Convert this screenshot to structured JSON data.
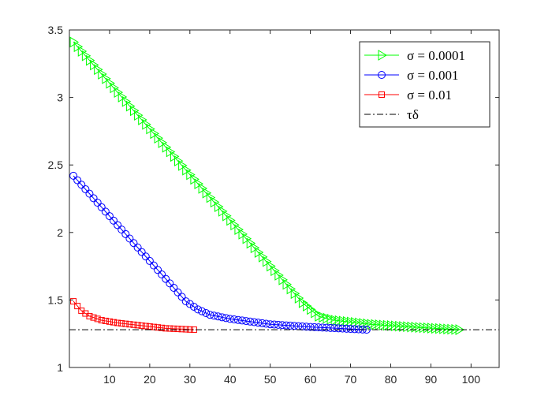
{
  "chart_data": {
    "type": "line",
    "title": "",
    "xlabel": "",
    "ylabel": "",
    "xlim": [
      0,
      107
    ],
    "ylim": [
      1,
      3.5
    ],
    "xticks": [
      10,
      20,
      30,
      40,
      50,
      60,
      70,
      80,
      90,
      100
    ],
    "yticks": [
      1,
      1.5,
      2,
      2.5,
      3,
      3.5
    ],
    "xtick_labels": [
      "10",
      "20",
      "30",
      "40",
      "50",
      "60",
      "70",
      "80",
      "90",
      "100"
    ],
    "ytick_labels": [
      "1",
      "1.5",
      "2",
      "2.5",
      "3",
      "3.5"
    ],
    "grid": false,
    "legend_position": "top-right",
    "reference_line": {
      "name": "τδ",
      "y": 1.28,
      "color": "#000000",
      "style": "dash-dot"
    },
    "series": [
      {
        "name": "σ = 0.0001",
        "color": "#00ff00",
        "marker": "triangle-right",
        "keypoints": [
          [
            1,
            3.41
          ],
          [
            58,
            1.48
          ],
          [
            62,
            1.38
          ],
          [
            66,
            1.35
          ],
          [
            75,
            1.32
          ],
          [
            85,
            1.3
          ],
          [
            97,
            1.28
          ]
        ],
        "n_points": 97
      },
      {
        "name": "σ = 0.001",
        "color": "#0000ff",
        "marker": "circle",
        "keypoints": [
          [
            1,
            2.42
          ],
          [
            29,
            1.49
          ],
          [
            32,
            1.43
          ],
          [
            35,
            1.39
          ],
          [
            40,
            1.36
          ],
          [
            50,
            1.32
          ],
          [
            60,
            1.3
          ],
          [
            74,
            1.28
          ]
        ],
        "n_points": 74
      },
      {
        "name": "σ = 0.01",
        "color": "#ff0000",
        "marker": "square",
        "keypoints": [
          [
            1,
            1.49
          ],
          [
            3,
            1.42
          ],
          [
            5,
            1.38
          ],
          [
            8,
            1.35
          ],
          [
            12,
            1.33
          ],
          [
            18,
            1.31
          ],
          [
            24,
            1.29
          ],
          [
            31,
            1.28
          ]
        ],
        "n_points": 31
      }
    ]
  }
}
